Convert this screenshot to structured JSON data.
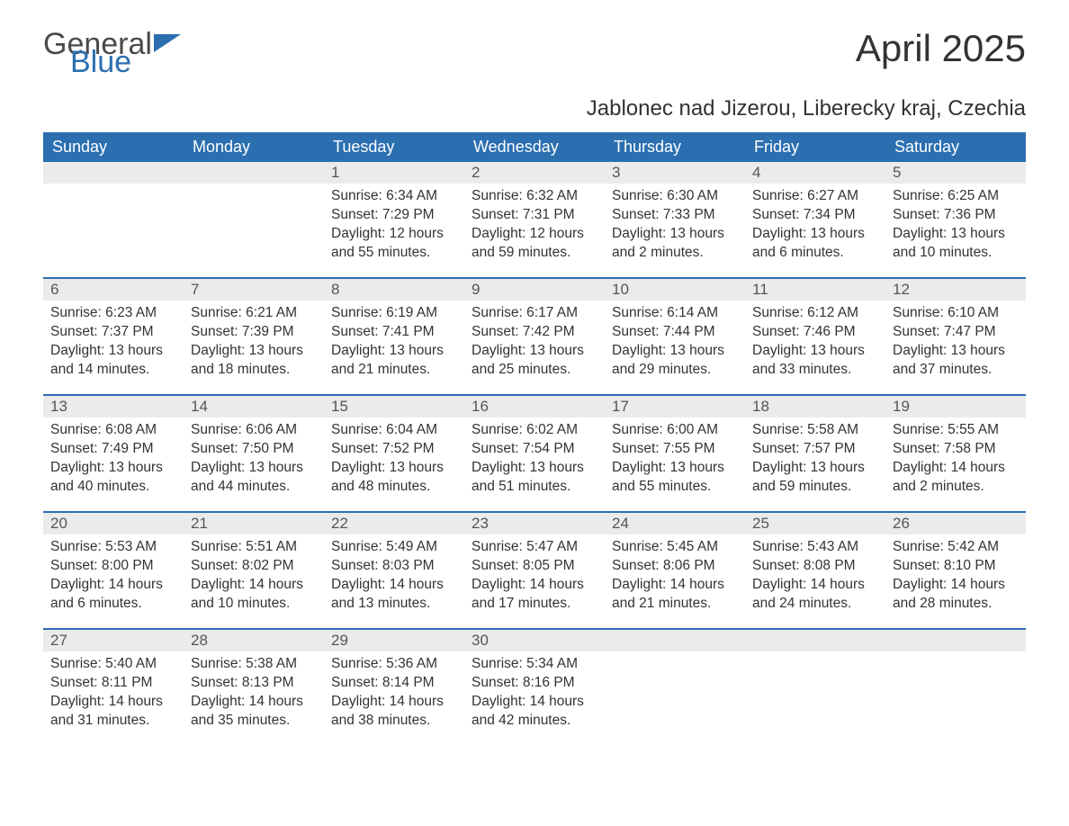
{
  "logo": {
    "text_general": "General",
    "text_blue": "Blue"
  },
  "title": "April 2025",
  "location": "Jablonec nad Jizerou, Liberecky kraj, Czechia",
  "colors": {
    "header_bg": "#2b6fb0",
    "header_text": "#ffffff",
    "daynum_bg": "#ebebeb",
    "body_text": "#333333",
    "week_border": "#2b6fb0",
    "page_bg": "#ffffff",
    "logo_general": "#4a4a4a",
    "logo_blue": "#2b6fb0"
  },
  "typography": {
    "month_title_fontsize": 42,
    "location_fontsize": 24,
    "day_header_fontsize": 18,
    "daynum_fontsize": 17,
    "info_fontsize": 15.5,
    "font_family": "Arial"
  },
  "day_headers": [
    "Sunday",
    "Monday",
    "Tuesday",
    "Wednesday",
    "Thursday",
    "Friday",
    "Saturday"
  ],
  "weeks": [
    [
      null,
      null,
      {
        "n": "1",
        "sr": "Sunrise: 6:34 AM",
        "ss": "Sunset: 7:29 PM",
        "d1": "Daylight: 12 hours",
        "d2": "and 55 minutes."
      },
      {
        "n": "2",
        "sr": "Sunrise: 6:32 AM",
        "ss": "Sunset: 7:31 PM",
        "d1": "Daylight: 12 hours",
        "d2": "and 59 minutes."
      },
      {
        "n": "3",
        "sr": "Sunrise: 6:30 AM",
        "ss": "Sunset: 7:33 PM",
        "d1": "Daylight: 13 hours",
        "d2": "and 2 minutes."
      },
      {
        "n": "4",
        "sr": "Sunrise: 6:27 AM",
        "ss": "Sunset: 7:34 PM",
        "d1": "Daylight: 13 hours",
        "d2": "and 6 minutes."
      },
      {
        "n": "5",
        "sr": "Sunrise: 6:25 AM",
        "ss": "Sunset: 7:36 PM",
        "d1": "Daylight: 13 hours",
        "d2": "and 10 minutes."
      }
    ],
    [
      {
        "n": "6",
        "sr": "Sunrise: 6:23 AM",
        "ss": "Sunset: 7:37 PM",
        "d1": "Daylight: 13 hours",
        "d2": "and 14 minutes."
      },
      {
        "n": "7",
        "sr": "Sunrise: 6:21 AM",
        "ss": "Sunset: 7:39 PM",
        "d1": "Daylight: 13 hours",
        "d2": "and 18 minutes."
      },
      {
        "n": "8",
        "sr": "Sunrise: 6:19 AM",
        "ss": "Sunset: 7:41 PM",
        "d1": "Daylight: 13 hours",
        "d2": "and 21 minutes."
      },
      {
        "n": "9",
        "sr": "Sunrise: 6:17 AM",
        "ss": "Sunset: 7:42 PM",
        "d1": "Daylight: 13 hours",
        "d2": "and 25 minutes."
      },
      {
        "n": "10",
        "sr": "Sunrise: 6:14 AM",
        "ss": "Sunset: 7:44 PM",
        "d1": "Daylight: 13 hours",
        "d2": "and 29 minutes."
      },
      {
        "n": "11",
        "sr": "Sunrise: 6:12 AM",
        "ss": "Sunset: 7:46 PM",
        "d1": "Daylight: 13 hours",
        "d2": "and 33 minutes."
      },
      {
        "n": "12",
        "sr": "Sunrise: 6:10 AM",
        "ss": "Sunset: 7:47 PM",
        "d1": "Daylight: 13 hours",
        "d2": "and 37 minutes."
      }
    ],
    [
      {
        "n": "13",
        "sr": "Sunrise: 6:08 AM",
        "ss": "Sunset: 7:49 PM",
        "d1": "Daylight: 13 hours",
        "d2": "and 40 minutes."
      },
      {
        "n": "14",
        "sr": "Sunrise: 6:06 AM",
        "ss": "Sunset: 7:50 PM",
        "d1": "Daylight: 13 hours",
        "d2": "and 44 minutes."
      },
      {
        "n": "15",
        "sr": "Sunrise: 6:04 AM",
        "ss": "Sunset: 7:52 PM",
        "d1": "Daylight: 13 hours",
        "d2": "and 48 minutes."
      },
      {
        "n": "16",
        "sr": "Sunrise: 6:02 AM",
        "ss": "Sunset: 7:54 PM",
        "d1": "Daylight: 13 hours",
        "d2": "and 51 minutes."
      },
      {
        "n": "17",
        "sr": "Sunrise: 6:00 AM",
        "ss": "Sunset: 7:55 PM",
        "d1": "Daylight: 13 hours",
        "d2": "and 55 minutes."
      },
      {
        "n": "18",
        "sr": "Sunrise: 5:58 AM",
        "ss": "Sunset: 7:57 PM",
        "d1": "Daylight: 13 hours",
        "d2": "and 59 minutes."
      },
      {
        "n": "19",
        "sr": "Sunrise: 5:55 AM",
        "ss": "Sunset: 7:58 PM",
        "d1": "Daylight: 14 hours",
        "d2": "and 2 minutes."
      }
    ],
    [
      {
        "n": "20",
        "sr": "Sunrise: 5:53 AM",
        "ss": "Sunset: 8:00 PM",
        "d1": "Daylight: 14 hours",
        "d2": "and 6 minutes."
      },
      {
        "n": "21",
        "sr": "Sunrise: 5:51 AM",
        "ss": "Sunset: 8:02 PM",
        "d1": "Daylight: 14 hours",
        "d2": "and 10 minutes."
      },
      {
        "n": "22",
        "sr": "Sunrise: 5:49 AM",
        "ss": "Sunset: 8:03 PM",
        "d1": "Daylight: 14 hours",
        "d2": "and 13 minutes."
      },
      {
        "n": "23",
        "sr": "Sunrise: 5:47 AM",
        "ss": "Sunset: 8:05 PM",
        "d1": "Daylight: 14 hours",
        "d2": "and 17 minutes."
      },
      {
        "n": "24",
        "sr": "Sunrise: 5:45 AM",
        "ss": "Sunset: 8:06 PM",
        "d1": "Daylight: 14 hours",
        "d2": "and 21 minutes."
      },
      {
        "n": "25",
        "sr": "Sunrise: 5:43 AM",
        "ss": "Sunset: 8:08 PM",
        "d1": "Daylight: 14 hours",
        "d2": "and 24 minutes."
      },
      {
        "n": "26",
        "sr": "Sunrise: 5:42 AM",
        "ss": "Sunset: 8:10 PM",
        "d1": "Daylight: 14 hours",
        "d2": "and 28 minutes."
      }
    ],
    [
      {
        "n": "27",
        "sr": "Sunrise: 5:40 AM",
        "ss": "Sunset: 8:11 PM",
        "d1": "Daylight: 14 hours",
        "d2": "and 31 minutes."
      },
      {
        "n": "28",
        "sr": "Sunrise: 5:38 AM",
        "ss": "Sunset: 8:13 PM",
        "d1": "Daylight: 14 hours",
        "d2": "and 35 minutes."
      },
      {
        "n": "29",
        "sr": "Sunrise: 5:36 AM",
        "ss": "Sunset: 8:14 PM",
        "d1": "Daylight: 14 hours",
        "d2": "and 38 minutes."
      },
      {
        "n": "30",
        "sr": "Sunrise: 5:34 AM",
        "ss": "Sunset: 8:16 PM",
        "d1": "Daylight: 14 hours",
        "d2": "and 42 minutes."
      },
      null,
      null,
      null
    ]
  ]
}
